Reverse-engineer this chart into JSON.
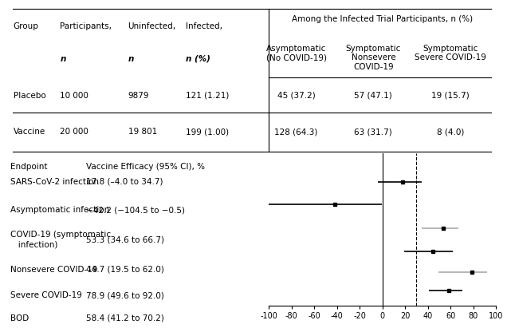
{
  "table_col_header": "Among the Infected Trial Participants, n (%)",
  "table_rows": [
    [
      "Placebo",
      "10 000",
      "9879",
      "121 (1.21)",
      "45 (37.2)",
      "57 (47.1)",
      "19 (15.7)"
    ],
    [
      "Vaccine",
      "20 000",
      "19 801",
      "199 (1.00)",
      "128 (64.3)",
      "63 (31.7)",
      "8 (4.0)"
    ]
  ],
  "forest_endpoints": [
    "SARS-CoV-2 infection",
    "Asymptomatic infection",
    "COVID-19 (symptomatic\n   infection)",
    "Nonsevere COVID-19",
    "Severe COVID-19",
    "BOD"
  ],
  "forest_labels": [
    "17.8 (–4.0 to 34.7)",
    "−42.2 (−104.5 to −0.5)",
    "53.3 (34.6 to 66.7)",
    "44.7 (19.5 to 62.0)",
    "78.9 (49.6 to 92.0)",
    "58.4 (41.2 to 70.2)"
  ],
  "forest_estimates": [
    17.8,
    -42.2,
    53.3,
    44.7,
    78.9,
    58.4
  ],
  "forest_ci_low": [
    -4.0,
    -104.5,
    34.6,
    19.5,
    49.6,
    41.2
  ],
  "forest_ci_high": [
    34.7,
    -0.5,
    66.7,
    62.0,
    92.0,
    70.2
  ],
  "forest_xlim": [
    -100,
    100
  ],
  "forest_xticks": [
    -100,
    -80,
    -60,
    -40,
    -20,
    0,
    20,
    40,
    60,
    80,
    100
  ],
  "fda_threshold": 30,
  "forest_header_endpoint": "Endpoint",
  "forest_header_ve": "Vaccine Efficacy (95% CI), %",
  "ci_colors": [
    "#000000",
    "#000000",
    "#aaaaaa",
    "#000000",
    "#aaaaaa",
    "#000000"
  ],
  "bg_color": "#ffffff",
  "text_color": "#000000",
  "fs": 7.5,
  "fs_small": 7.0
}
